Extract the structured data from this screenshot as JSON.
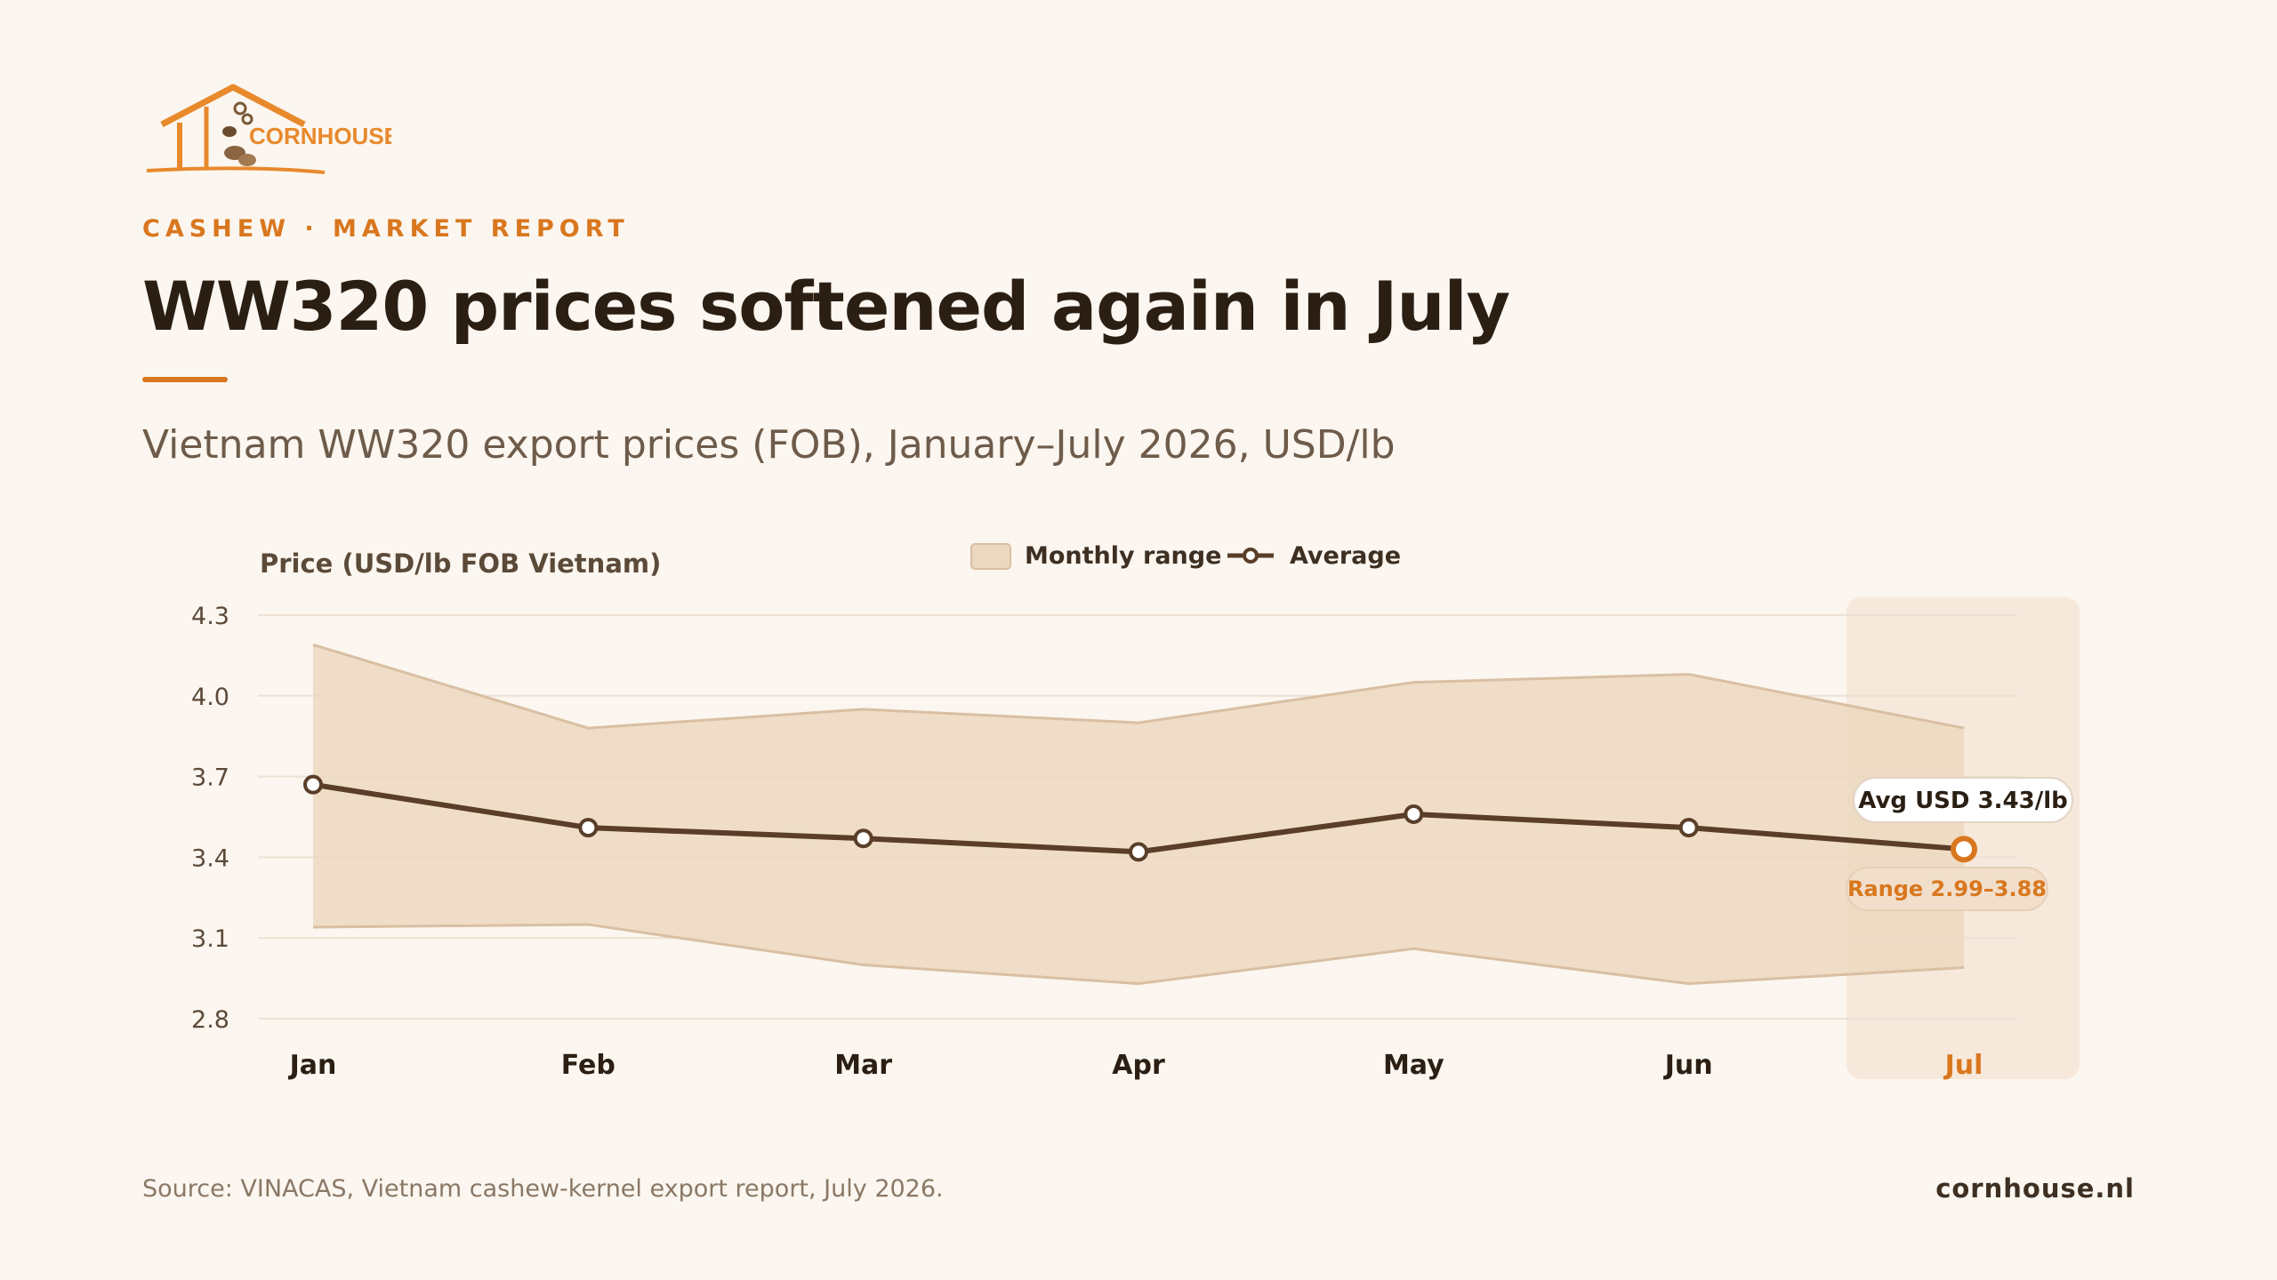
{
  "brand": {
    "logo_text": "CORNHOUSE",
    "accent_color": "#d9771e",
    "site": "cornhouse.nl"
  },
  "header": {
    "kicker": "CASHEW · MARKET REPORT",
    "title": "WW320 prices softened again in July",
    "subtitle": "Vietnam WW320 export prices (FOB), January–July 2026, USD/lb"
  },
  "chart_data": {
    "type": "area",
    "ylabel": "Price (USD/lb FOB Vietnam)",
    "xlabel": "",
    "categories": [
      "Jan",
      "Feb",
      "Mar",
      "Apr",
      "May",
      "Jun",
      "Jul"
    ],
    "ylim": [
      2.8,
      4.3
    ],
    "yticks": [
      "4.3",
      "4.0",
      "3.7",
      "3.4",
      "3.1",
      "2.8"
    ],
    "grid": true,
    "legend_position": "top-center",
    "series": [
      {
        "name": "Monthly range",
        "kind": "band",
        "low": [
          3.14,
          3.15,
          3.0,
          2.93,
          3.06,
          2.93,
          2.99
        ],
        "high": [
          4.19,
          3.88,
          3.95,
          3.9,
          4.05,
          4.08,
          3.88
        ],
        "color": "#ecd8c0"
      },
      {
        "name": "Average",
        "kind": "line",
        "values": [
          3.67,
          3.51,
          3.47,
          3.42,
          3.56,
          3.51,
          3.43
        ],
        "color": "#5a3e28"
      }
    ],
    "highlight": {
      "category": "Jul",
      "avg_label": "Avg USD 3.43/lb",
      "range_label": "Range 2.99–3.88"
    }
  },
  "footer": {
    "source": "Source: VINACAS, Vietnam cashew-kernel export report, July 2026."
  }
}
